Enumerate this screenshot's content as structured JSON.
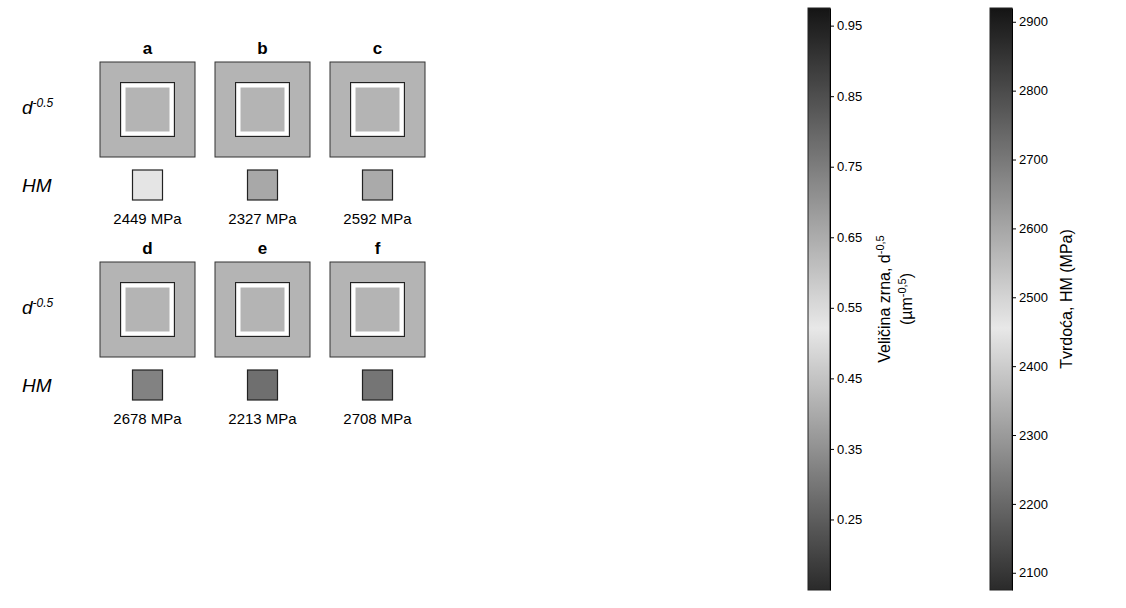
{
  "chart_data": {
    "type": "heatmap",
    "categories": [
      "a",
      "b",
      "c",
      "d",
      "e",
      "f"
    ],
    "values": [
      2449,
      2327,
      2592,
      2678,
      2213,
      2708
    ],
    "value_labels": [
      "2449 MPa",
      "2327 MPa",
      "2592 MPa",
      "2678 MPa",
      "2213 MPa",
      "2708 MPa"
    ],
    "data_labels": true,
    "row_labels": [
      {
        "text": "d",
        "superscript": "-0.5"
      },
      {
        "text": "HM"
      }
    ],
    "colorbars": [
      {
        "title": [
          [
            {
              "text": "Veličina zrna, d"
            },
            {
              "text": "-0,5",
              "sup": true
            }
          ],
          [
            {
              "text": "(µm"
            },
            {
              "text": "-0,5",
              "sup": true
            },
            {
              "text": ")"
            }
          ]
        ],
        "range": [
          0.15,
          0.975
        ],
        "ticks": [
          0.25,
          0.35,
          0.45,
          0.55,
          0.65,
          0.75,
          0.85,
          0.95
        ]
      },
      {
        "title": [
          [
            {
              "text": "Tvrdoća, HM (MPa)"
            }
          ]
        ],
        "range": [
          2075,
          2920
        ],
        "ticks": [
          2100,
          2200,
          2300,
          2400,
          2500,
          2600,
          2700,
          2800,
          2900
        ]
      }
    ]
  }
}
